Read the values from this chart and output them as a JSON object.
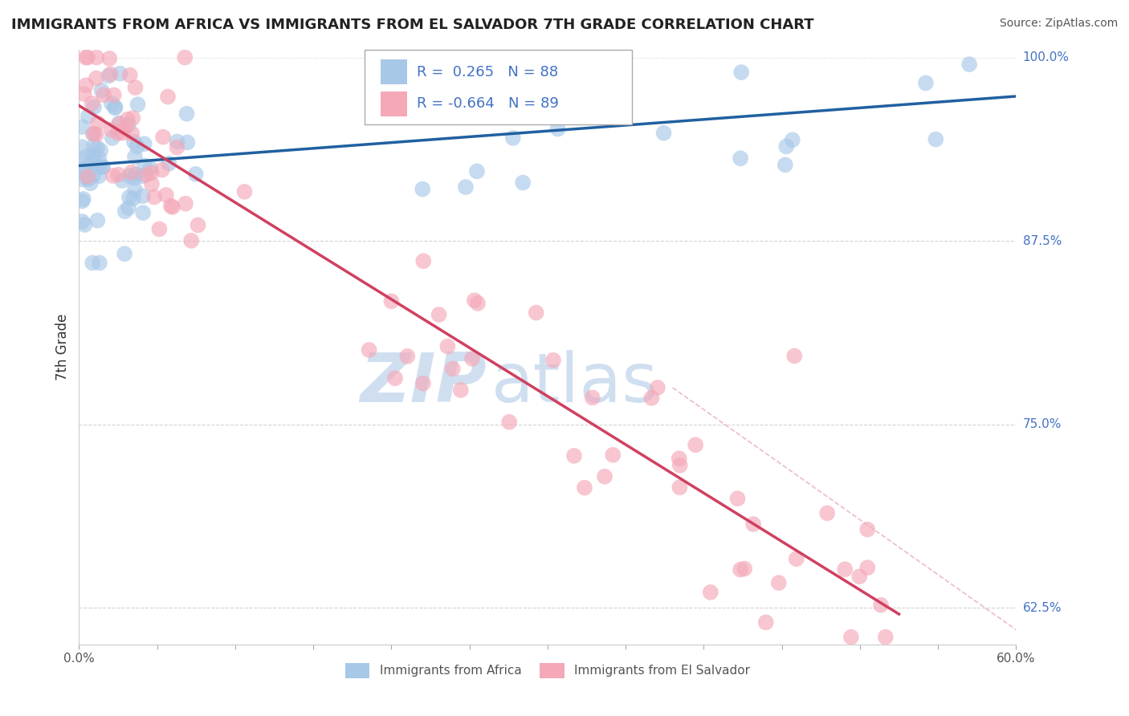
{
  "title": "IMMIGRANTS FROM AFRICA VS IMMIGRANTS FROM EL SALVADOR 7TH GRADE CORRELATION CHART",
  "source": "Source: ZipAtlas.com",
  "xlabel_africa": "Immigrants from Africa",
  "xlabel_elsalvador": "Immigrants from El Salvador",
  "ylabel": "7th Grade",
  "xlim": [
    0.0,
    0.6
  ],
  "ylim": [
    0.6,
    1.005
  ],
  "R_africa": 0.265,
  "N_africa": 88,
  "R_elsalvador": -0.664,
  "N_elsalvador": 89,
  "africa_color": "#a8c8e8",
  "elsalvador_color": "#f4a8b8",
  "africa_line_color": "#2060a0",
  "elsalvador_line_color": "#d04060",
  "diag_line_color": "#e090a0",
  "background_color": "#ffffff",
  "grid_color": "#c8c8c8",
  "watermark_color": "#d0dff0",
  "right_label_color": "#4472c4",
  "title_color": "#222222",
  "source_color": "#555555",
  "tick_label_color": "#555555",
  "ylabel_color": "#333333",
  "legend_text_color": "#4472c4"
}
